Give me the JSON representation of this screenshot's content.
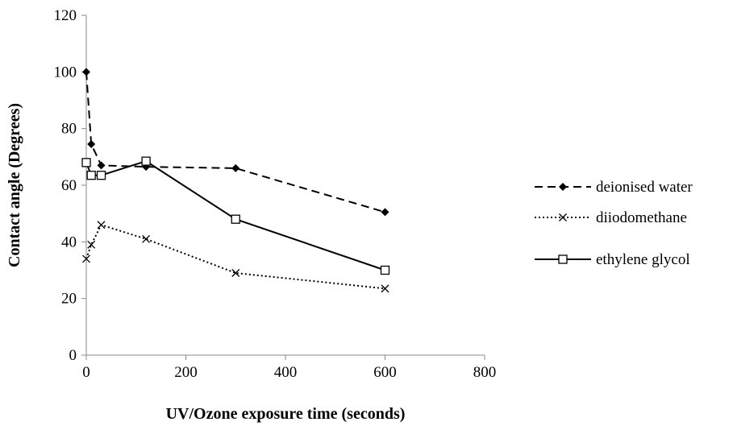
{
  "chart_data": {
    "type": "line",
    "xlabel": "UV/Ozone exposure time (seconds)",
    "ylabel": "Contact angle (Degrees)",
    "xlim": [
      0,
      800
    ],
    "ylim": [
      0,
      120
    ],
    "xticks": [
      0,
      200,
      400,
      600,
      800
    ],
    "yticks": [
      0,
      20,
      40,
      60,
      80,
      100,
      120
    ],
    "grid": false,
    "legend_position": "right",
    "series": [
      {
        "name": "deionised water",
        "line_style": "dashed",
        "marker": "diamond",
        "color": "#000000",
        "x": [
          0,
          10,
          30,
          120,
          300,
          600
        ],
        "y": [
          100,
          74.5,
          67,
          66.5,
          66,
          50.5
        ]
      },
      {
        "name": "diiodomethane",
        "line_style": "dotted",
        "marker": "x",
        "color": "#000000",
        "x": [
          0,
          10,
          30,
          120,
          300,
          600
        ],
        "y": [
          34,
          39,
          46,
          41,
          29,
          23.5
        ]
      },
      {
        "name": "ethylene glycol",
        "line_style": "solid",
        "marker": "square",
        "color": "#000000",
        "x": [
          0,
          10,
          30,
          120,
          300,
          600
        ],
        "y": [
          68,
          63.5,
          63.5,
          68.5,
          48,
          30
        ]
      }
    ]
  }
}
